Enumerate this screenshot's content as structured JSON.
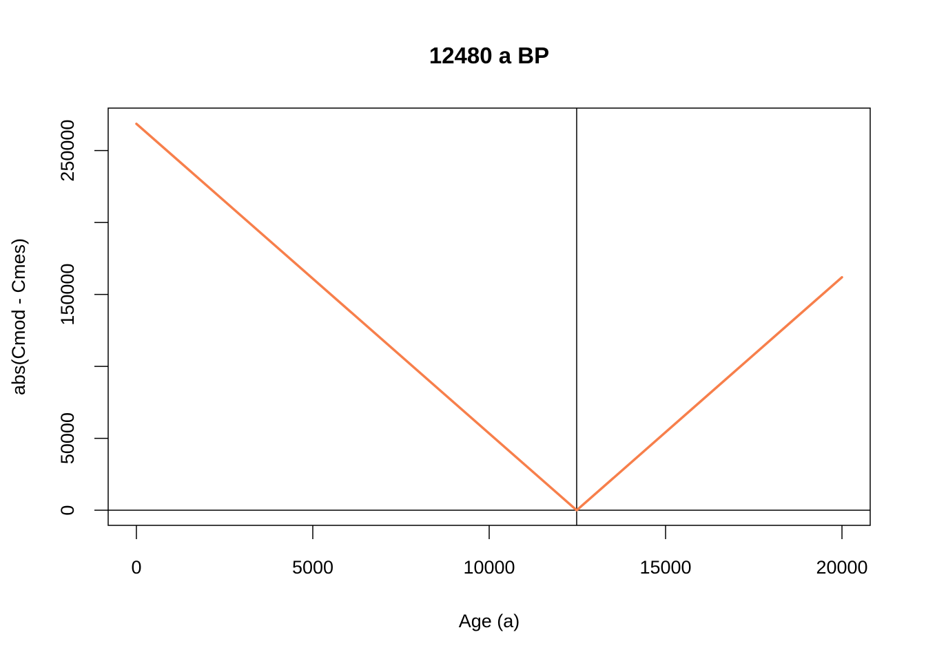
{
  "chart_data": {
    "type": "line",
    "title": "12480 a BP",
    "xlabel": "Age (a)",
    "ylabel": "abs(Cmod - Cmes)",
    "xlim": [
      -800,
      20800
    ],
    "ylim": [
      -10500,
      279500
    ],
    "x_ticks": [
      0,
      5000,
      10000,
      15000,
      20000
    ],
    "x_tick_labels": [
      "0",
      "5000",
      "10000",
      "15000",
      "20000"
    ],
    "y_ticks": [
      0,
      50000,
      100000,
      150000,
      200000,
      250000
    ],
    "y_tick_labels": [
      "0",
      "50000",
      "",
      "150000",
      "",
      "250000"
    ],
    "grid": false,
    "legend": "none",
    "series": [
      {
        "color": "#F77F4B",
        "x": [
          0,
          12480,
          20000
        ],
        "y": [
          268600,
          0,
          161900
        ]
      }
    ],
    "reference_lines": {
      "vertical_x": 12480,
      "horizontal_y": 0
    }
  }
}
